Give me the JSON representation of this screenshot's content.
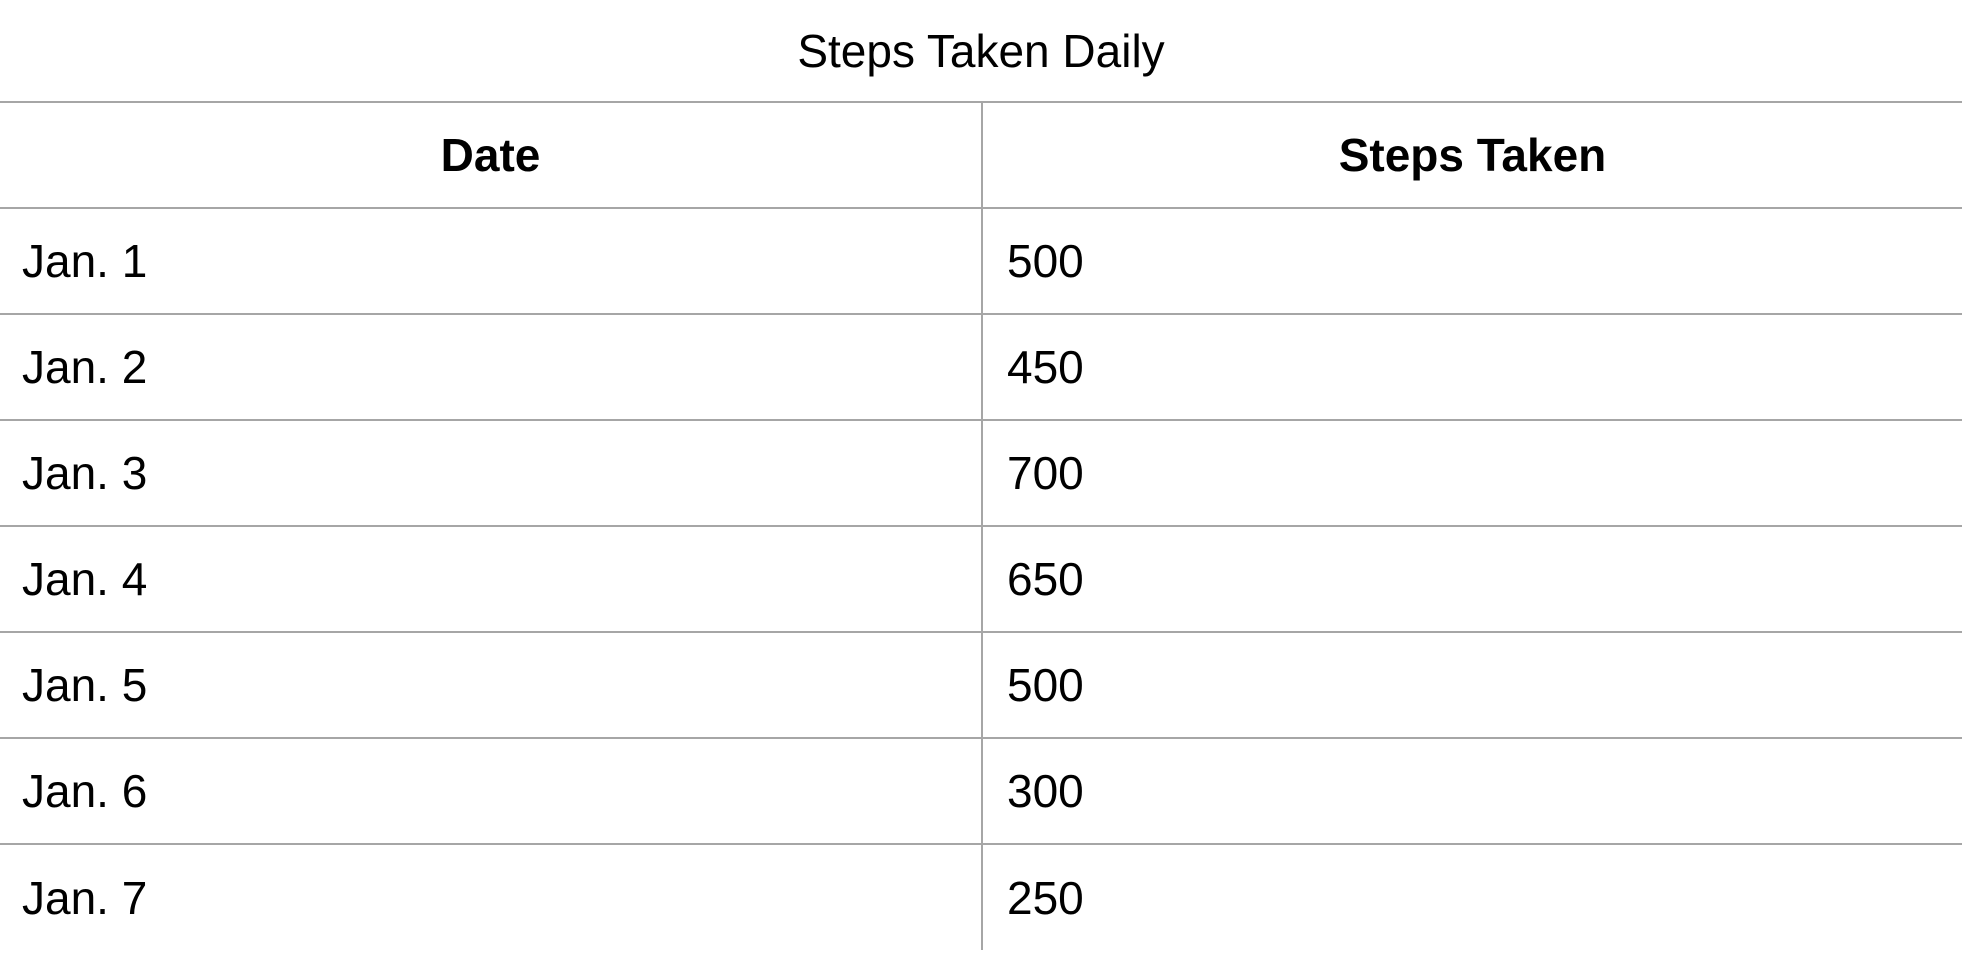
{
  "chart_data": {
    "type": "table",
    "title": "Steps Taken Daily",
    "columns": [
      "Date",
      "Steps Taken"
    ],
    "rows": [
      [
        "Jan. 1",
        "500"
      ],
      [
        "Jan. 2",
        "450"
      ],
      [
        "Jan. 3",
        "700"
      ],
      [
        "Jan. 4",
        "650"
      ],
      [
        "Jan. 5",
        "500"
      ],
      [
        "Jan. 6",
        "300"
      ],
      [
        "Jan. 7",
        "250"
      ]
    ],
    "border_color": "#a6a6a6",
    "text_color": "#000000",
    "background_color": "#ffffff"
  }
}
